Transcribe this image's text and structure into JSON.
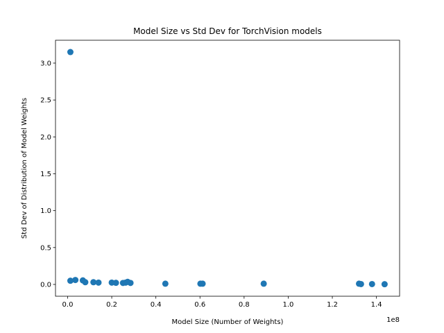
{
  "chart_data": {
    "type": "scatter",
    "title": "Model Size vs Std Dev for TorchVision models",
    "xlabel": "Model Size (Number of Weights)",
    "ylabel": "Std Dev of Distribution of Model Weights",
    "x_offset_label": "1e8",
    "xlim": [
      -0.055,
      1.505
    ],
    "ylim": [
      -0.16,
      3.31
    ],
    "x_ticks": [
      0.0,
      0.2,
      0.4,
      0.6,
      0.8,
      1.0,
      1.2,
      1.4
    ],
    "x_tick_labels": [
      "0.0",
      "0.2",
      "0.4",
      "0.6",
      "0.8",
      "1.0",
      "1.2",
      "1.4"
    ],
    "y_ticks": [
      0.0,
      0.5,
      1.0,
      1.5,
      2.0,
      2.5,
      3.0
    ],
    "y_tick_labels": [
      "0.0",
      "0.5",
      "1.0",
      "1.5",
      "2.0",
      "2.5",
      "3.0"
    ],
    "grid": false,
    "marker_color": "#1f77b4",
    "points": [
      {
        "x": 0.0125,
        "y": 3.15
      },
      {
        "x": 0.0125,
        "y": 0.05
      },
      {
        "x": 0.035,
        "y": 0.06
      },
      {
        "x": 0.069,
        "y": 0.055
      },
      {
        "x": 0.08,
        "y": 0.03
      },
      {
        "x": 0.117,
        "y": 0.03
      },
      {
        "x": 0.14,
        "y": 0.025
      },
      {
        "x": 0.2,
        "y": 0.025
      },
      {
        "x": 0.219,
        "y": 0.022
      },
      {
        "x": 0.251,
        "y": 0.02
      },
      {
        "x": 0.263,
        "y": 0.025
      },
      {
        "x": 0.272,
        "y": 0.035
      },
      {
        "x": 0.285,
        "y": 0.02
      },
      {
        "x": 0.443,
        "y": 0.01
      },
      {
        "x": 0.602,
        "y": 0.01
      },
      {
        "x": 0.612,
        "y": 0.01
      },
      {
        "x": 0.889,
        "y": 0.01
      },
      {
        "x": 1.321,
        "y": 0.01
      },
      {
        "x": 1.33,
        "y": 0.005
      },
      {
        "x": 1.38,
        "y": 0.005
      },
      {
        "x": 1.437,
        "y": 0.003
      }
    ]
  }
}
